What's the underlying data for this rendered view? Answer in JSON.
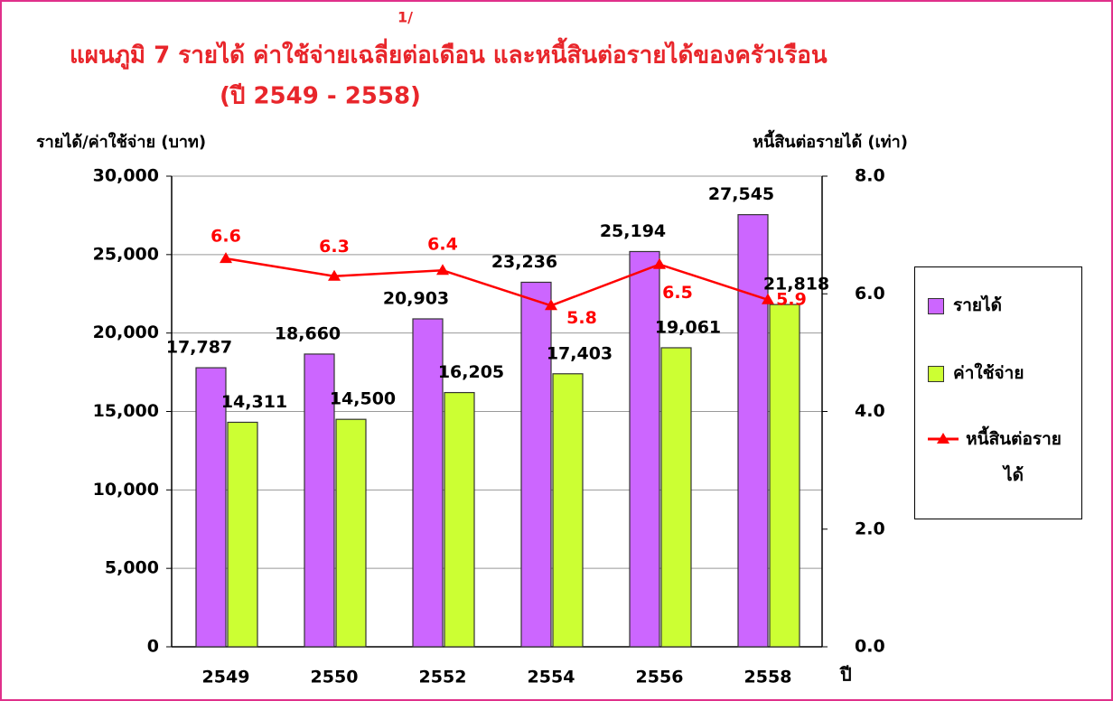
{
  "chart_data": {
    "type": "bar-line",
    "title": "แผนภูมิ  7  รายได้ ค่าใช้จ่ายเฉลี่ยต่อเดือน และหนี้สินต่อรายได้ของครัวเรือน",
    "note_marker": "1/",
    "subtitle": "(ปี 2549 - 2558)",
    "ylabel": "รายได้/ค่าใช้จ่าย (บาท)",
    "y2label": "หนี้สินต่อรายได้ (เท่า)",
    "xlabel": "ปี",
    "categories": [
      "2549",
      "2550",
      "2552",
      "2554",
      "2556",
      "2558"
    ],
    "series": [
      {
        "name": "รายได้",
        "type": "bar",
        "color": "#cc66ff",
        "values": [
          17787,
          18660,
          20903,
          23236,
          25194,
          27545
        ],
        "value_labels": [
          "17,787",
          "18,660",
          "20,903",
          "23,236",
          "25,194",
          "27,545"
        ]
      },
      {
        "name": "ค่าใช้จ่าย",
        "type": "bar",
        "color": "#ccff33",
        "values": [
          14311,
          14500,
          16205,
          17403,
          19061,
          21818
        ],
        "value_labels": [
          "14,311",
          "14,500",
          "16,205",
          "17,403",
          "19,061",
          "21,818"
        ]
      },
      {
        "name": "หนี้สินต่อรายได้",
        "type": "line",
        "axis": "y2",
        "color": "#ff0000",
        "values": [
          6.6,
          6.3,
          6.4,
          5.8,
          6.5,
          5.9
        ]
      }
    ],
    "ylim": [
      0,
      30000
    ],
    "yticks": [
      0,
      {
        "value": 5000,
        "label": "5,000"
      },
      {
        "value": 10000,
        "label": "10,000"
      },
      {
        "value": 15000,
        "label": "15,000"
      },
      {
        "value": 20000,
        "label": "20,000"
      },
      {
        "value": 25000,
        "label": "25,000"
      },
      {
        "value": 30000,
        "label": "30,000"
      }
    ],
    "y2lim": [
      0,
      8
    ],
    "y2ticks": [
      {
        "value": 0,
        "label": "0.0"
      },
      {
        "value": 2,
        "label": "2.0"
      },
      {
        "value": 4,
        "label": "4.0"
      },
      {
        "value": 6,
        "label": "6.0"
      },
      {
        "value": 8,
        "label": "8.0"
      }
    ],
    "grid": true
  }
}
